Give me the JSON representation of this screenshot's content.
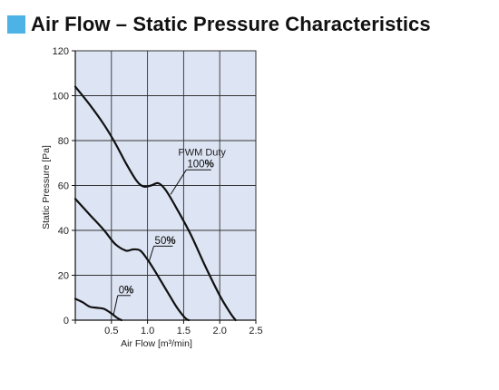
{
  "header": {
    "title": "Air Flow – Static Pressure Characteristics",
    "marker_color": "#4db3e6"
  },
  "chart_data": {
    "type": "line",
    "title": "Air Flow – Static Pressure Characteristics",
    "xlabel": "Air Flow [m³/min]",
    "ylabel": "Static Pressure [Pa]",
    "xlim": [
      0,
      2.5
    ],
    "ylim": [
      0,
      120
    ],
    "xticks": [
      "",
      "0.5",
      "1.0",
      "1.5",
      "2.0",
      "2.5"
    ],
    "xtick_values": [
      0,
      0.5,
      1.0,
      1.5,
      2.0,
      2.5
    ],
    "yticks": [
      "0",
      "20",
      "40",
      "60",
      "80",
      "100",
      "120"
    ],
    "ytick_values": [
      0,
      20,
      40,
      60,
      80,
      100,
      120
    ],
    "grid": true,
    "plot_background": "#dde4f3",
    "line_color": "#111111",
    "legend_heading": "PWM Duty",
    "series": [
      {
        "name": "100%",
        "x": [
          0,
          0.2,
          0.4,
          0.55,
          0.7,
          0.85,
          0.95,
          1.05,
          1.15,
          1.25,
          1.4,
          1.6,
          1.8,
          2.0,
          2.15,
          2.22
        ],
        "values": [
          104,
          96,
          87,
          79,
          70,
          62,
          59.5,
          60,
          61,
          58,
          50,
          38,
          24,
          11,
          3,
          0
        ]
      },
      {
        "name": "50%",
        "x": [
          0,
          0.2,
          0.4,
          0.55,
          0.7,
          0.8,
          0.9,
          1.0,
          1.1,
          1.25,
          1.4,
          1.52,
          1.57
        ],
        "values": [
          54,
          47,
          40,
          34,
          31,
          31.5,
          31,
          27,
          22,
          14,
          6,
          1,
          0
        ]
      },
      {
        "name": "0%",
        "x": [
          0,
          0.1,
          0.2,
          0.3,
          0.4,
          0.5,
          0.58,
          0.64
        ],
        "values": [
          9.5,
          8,
          6,
          5.5,
          5,
          3,
          1,
          0
        ]
      }
    ],
    "annotations": [
      {
        "text": "100%",
        "series": "100%",
        "arrow_to": [
          1.32,
          56
        ],
        "label_at": [
          1.55,
          68
        ]
      },
      {
        "text": "50%",
        "series": "50%",
        "arrow_to": [
          1.02,
          26
        ],
        "label_at": [
          1.1,
          34
        ]
      },
      {
        "text": "0%",
        "series": "0%",
        "arrow_to": [
          0.53,
          2.5
        ],
        "label_at": [
          0.6,
          12
        ]
      }
    ]
  }
}
